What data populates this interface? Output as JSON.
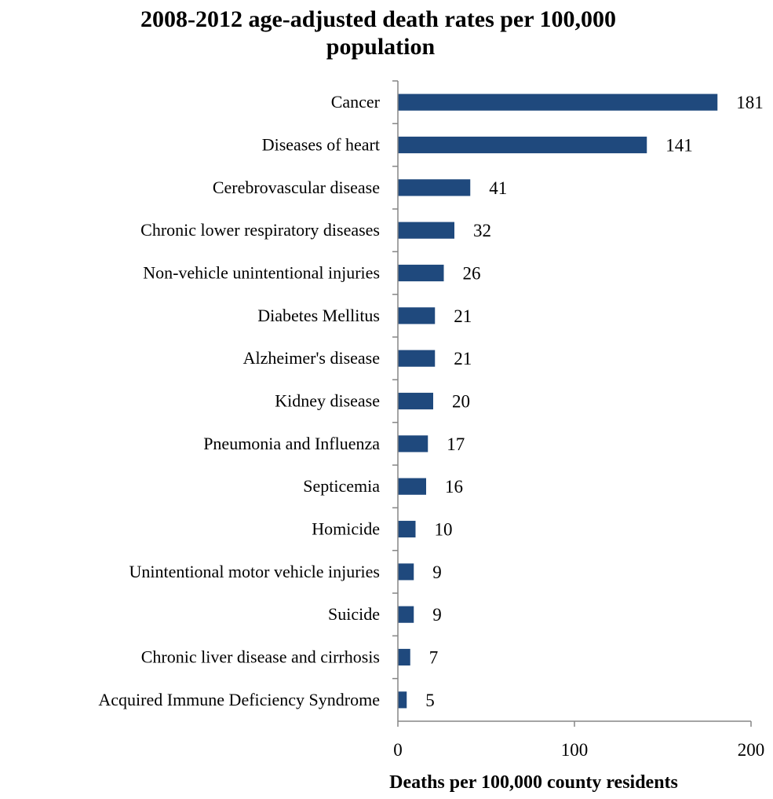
{
  "chart_data": {
    "type": "bar",
    "orientation": "horizontal",
    "title": [
      "2008-2012 age-adjusted death rates per 100,000",
      "population"
    ],
    "xlabel": "Deaths per 100,000 county residents",
    "ylabel": "",
    "xlim": [
      0,
      200
    ],
    "x_ticks": [
      0,
      100,
      200
    ],
    "grid": false,
    "legend": "none",
    "bar_color": "#1F497D",
    "categories": [
      "Cancer",
      "Diseases of heart",
      "Cerebrovascular disease",
      "Chronic lower respiratory diseases",
      "Non-vehicle unintentional injuries",
      "Diabetes Mellitus",
      "Alzheimer's disease",
      "Kidney disease",
      "Pneumonia and Influenza",
      "Septicemia",
      "Homicide",
      "Unintentional motor vehicle injuries",
      "Suicide",
      "Chronic liver disease and cirrhosis",
      "Acquired Immune Deficiency Syndrome"
    ],
    "values": [
      181,
      141,
      41,
      32,
      26,
      21,
      21,
      20,
      17,
      16,
      10,
      9,
      9,
      7,
      5
    ]
  }
}
